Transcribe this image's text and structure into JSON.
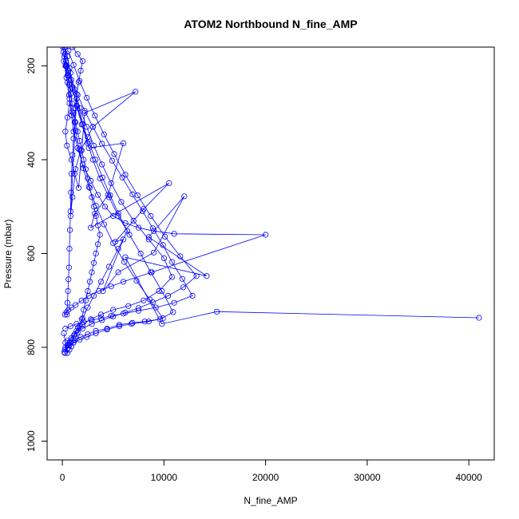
{
  "chart_data": {
    "type": "line",
    "title": "ATOM2 Northbound N_fine_AMP",
    "xlabel": "N_fine_AMP",
    "ylabel": "Pressure (mbar)",
    "xlim": [
      -1500,
      42500
    ],
    "ylim": [
      1040,
      160
    ],
    "y_reversed": true,
    "x_ticks": [
      0,
      10000,
      20000,
      30000,
      40000
    ],
    "y_ticks": [
      200,
      400,
      600,
      800,
      1000
    ],
    "grid": false,
    "legend": "none",
    "series_color": "#0000ff",
    "marker": "open-circle",
    "series": [
      {
        "x": [
          200,
          350,
          600,
          800,
          700,
          500,
          300,
          450,
          900,
          1200,
          1600,
          2200,
          7200,
          3000,
          2500,
          1800,
          1300,
          1000,
          800,
          1400,
          2600,
          6000,
          4500,
          3200,
          2800,
          10500,
          8000,
          5200,
          6000,
          4000,
          5500,
          9000,
          12000,
          8500,
          14200,
          6200,
          9800,
          15200,
          41000
        ],
        "y": [
          160,
          190,
          220,
          250,
          280,
          310,
          340,
          370,
          400,
          430,
          460,
          300,
          255,
          330,
          352,
          380,
          420,
          480,
          520,
          270,
          375,
          365,
          475,
          515,
          545,
          450,
          505,
          575,
          570,
          680,
          640,
          598,
          478,
          565,
          648,
          608,
          750,
          724,
          737
        ]
      },
      {
        "x": [
          100,
          300,
          500,
          700,
          900,
          1100,
          1500,
          2000,
          2800,
          3500,
          4200,
          5000,
          6200,
          7500,
          9000,
          11000,
          20000,
          8800,
          6000,
          4800,
          3600,
          2600,
          1900,
          1300,
          900,
          600,
          400,
          250
        ],
        "y": [
          170,
          200,
          235,
          270,
          305,
          340,
          375,
          410,
          445,
          475,
          500,
          520,
          535,
          545,
          552,
          558,
          560,
          640,
          660,
          670,
          680,
          690,
          700,
          710,
          715,
          720,
          725,
          730
        ]
      },
      {
        "x": [
          500,
          800,
          1200,
          1700,
          2400,
          3100,
          3900,
          4800,
          5800,
          7000,
          8500,
          10000,
          10800,
          9500,
          8000,
          6500,
          5000,
          3800,
          2800,
          2000,
          1400,
          900,
          500,
          200
        ],
        "y": [
          180,
          215,
          250,
          290,
          330,
          370,
          410,
          450,
          490,
          530,
          570,
          610,
          650,
          680,
          700,
          712,
          720,
          730,
          740,
          752,
          765,
          780,
          795,
          810
        ]
      },
      {
        "x": [
          300,
          700,
          1000,
          1400,
          1900,
          2500,
          3000,
          3700,
          4600,
          5500,
          6600,
          7700,
          8700,
          9800,
          10900,
          9600,
          8100,
          6900,
          5600,
          4400,
          3300,
          2500,
          1800,
          1200,
          700,
          300
        ],
        "y": [
          165,
          205,
          245,
          285,
          325,
          365,
          400,
          440,
          480,
          520,
          560,
          600,
          640,
          680,
          725,
          740,
          745,
          748,
          752,
          760,
          765,
          772,
          778,
          785,
          790,
          800
        ]
      },
      {
        "x": [
          150,
          400,
          650,
          950,
          1300,
          1650,
          2050,
          2600,
          3300,
          4100,
          5000,
          6100,
          7300,
          8600,
          9900,
          8500,
          6800,
          5600,
          4400,
          3300,
          2400,
          1700,
          1100,
          600,
          250
        ],
        "y": [
          190,
          225,
          262,
          298,
          338,
          378,
          418,
          458,
          498,
          538,
          578,
          618,
          658,
          698,
          738,
          745,
          750,
          755,
          762,
          770,
          778,
          784,
          790,
          796,
          805
        ]
      },
      {
        "x": [
          50,
          200,
          350,
          500,
          650,
          800,
          950,
          1100,
          1300,
          1500,
          1700,
          1900,
          2100,
          2300,
          2500,
          2700,
          2900,
          3100,
          3300,
          3500,
          3700,
          3500,
          3300,
          3100,
          2900,
          2700,
          2500,
          2300,
          2100,
          1900,
          1700,
          1500,
          1300,
          1100,
          900,
          700,
          500,
          300,
          150
        ],
        "y": [
          160,
          180,
          200,
          220,
          240,
          260,
          280,
          300,
          320,
          340,
          360,
          380,
          400,
          420,
          440,
          460,
          480,
          500,
          520,
          540,
          560,
          580,
          600,
          620,
          640,
          660,
          680,
          700,
          720,
          740,
          755,
          768,
          780,
          790,
          798,
          805,
          812,
          790,
          770
        ]
      },
      {
        "x": [
          1000,
          1500,
          2000,
          1800,
          1600,
          1400,
          1300,
          1200,
          1100,
          1000,
          900,
          850,
          800,
          750,
          700,
          650,
          600,
          550,
          500,
          450
        ],
        "y": [
          160,
          175,
          190,
          210,
          235,
          260,
          290,
          320,
          355,
          390,
          430,
          470,
          510,
          550,
          590,
          630,
          655,
          680,
          705,
          730
        ]
      },
      {
        "x": [
          400,
          900,
          1500,
          2200,
          3000,
          3900,
          4900,
          5900,
          6900,
          7900,
          8900,
          9900,
          10800,
          11800,
          12800,
          11000,
          9200,
          7500,
          6000,
          4800,
          3800,
          2900,
          2100,
          1400,
          800,
          300
        ],
        "y": [
          200,
          230,
          262,
          296,
          330,
          366,
          402,
          438,
          474,
          510,
          546,
          582,
          618,
          654,
          690,
          705,
          715,
          722,
          728,
          733,
          738,
          742,
          746,
          750,
          755,
          760
        ]
      },
      {
        "x": [
          250,
          600,
          1000,
          1450,
          2000,
          2600,
          3250,
          3950,
          4700,
          5500,
          6400,
          5500,
          4600,
          3800,
          3100,
          2500,
          2000,
          1550,
          1150,
          800,
          500,
          250
        ],
        "y": [
          175,
          210,
          248,
          286,
          324,
          362,
          400,
          438,
          476,
          514,
          552,
          590,
          628,
          660,
          690,
          715,
          738,
          758,
          775,
          790,
          802,
          812
        ]
      },
      {
        "x": [
          600,
          1100,
          1700,
          2400,
          3200,
          4100,
          5100,
          6200,
          7400,
          8700,
          10100,
          11600,
          13200,
          11900,
          10400,
          8900,
          7500,
          6200,
          5000,
          3900,
          2900,
          2000,
          1200,
          500
        ],
        "y": [
          168,
          198,
          232,
          268,
          306,
          346,
          388,
          432,
          476,
          520,
          564,
          606,
          648,
          672,
          690,
          704,
          716,
          726,
          734,
          742,
          750,
          760,
          772,
          786
        ]
      }
    ]
  }
}
